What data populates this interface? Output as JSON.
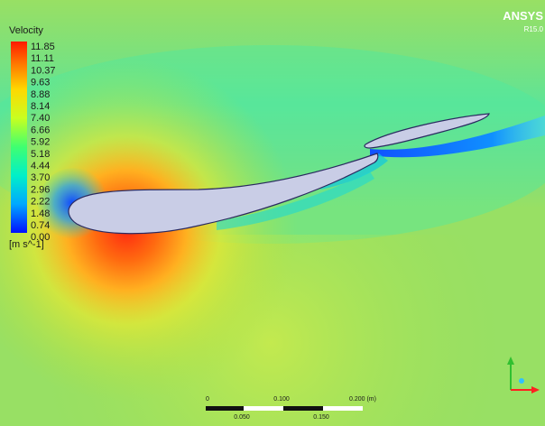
{
  "legend": {
    "title": "Velocity",
    "ticks": [
      "11.85",
      "11.11",
      "10.37",
      "9.63",
      "8.88",
      "8.14",
      "7.40",
      "6.66",
      "5.92",
      "5.18",
      "4.44",
      "3.70",
      "2.96",
      "2.22",
      "1.48",
      "0.74",
      "0.00"
    ],
    "unit": "[m s^-1]"
  },
  "brand": {
    "name": "ANSYS",
    "version": "R15.0"
  },
  "scale_bar": {
    "top_labels": [
      "0",
      "0.100",
      "0.200 (m)"
    ],
    "bottom_labels": [
      "0.050",
      "0.150"
    ]
  },
  "colors": {
    "background": "#8fe06a",
    "airfoil_fill": "#c8cde6",
    "high_velocity": "#ff3a10",
    "low_velocity": "#1060ff",
    "brand_text": "#ffffff"
  },
  "axis_triad": {
    "x_color": "#ff2020",
    "y_color": "#30c030",
    "z_color": "#30c0ff"
  }
}
